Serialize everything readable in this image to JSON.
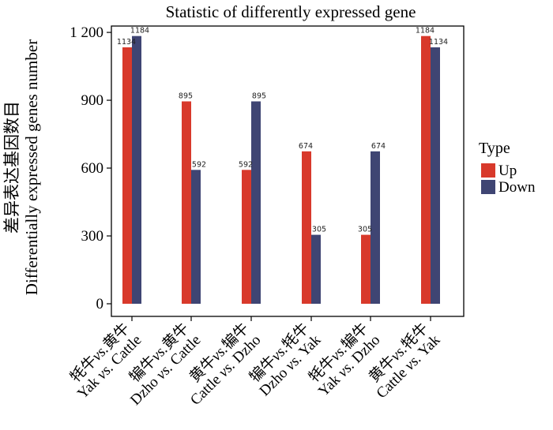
{
  "chart_data": {
    "type": "bar",
    "title": "Statistic of differently expressed gene",
    "ylabel_cn": "差异表达基因数目",
    "ylabel_en": "Differentially expressed genes number",
    "ylim": [
      0,
      1220
    ],
    "yticks": [
      0,
      300,
      600,
      900,
      1200
    ],
    "ytick_labels": [
      "0",
      "300",
      "600",
      "900",
      "1 200"
    ],
    "categories": [
      {
        "cn": "牦牛",
        "vs": "vs.",
        "cn2": "黄牛",
        "en1": "Yak",
        "en2": "Cattle"
      },
      {
        "cn": "犏牛",
        "vs": "vs.",
        "cn2": "黄牛",
        "en1": "Dzho",
        "en2": "Cattle"
      },
      {
        "cn": "黄牛",
        "vs": "vs.",
        "cn2": "犏牛",
        "en1": "Cattle",
        "en2": "Dzho"
      },
      {
        "cn": "犏牛",
        "vs": "vs.",
        "cn2": "牦牛",
        "en1": "Dzho",
        "en2": "Yak"
      },
      {
        "cn": "牦牛",
        "vs": "vs.",
        "cn2": "犏牛",
        "en1": "Yak",
        "en2": "Dzho"
      },
      {
        "cn": "黄牛",
        "vs": "vs.",
        "cn2": "牦牛",
        "en1": "Cattle",
        "en2": "Yak"
      }
    ],
    "series": [
      {
        "name": "Up",
        "color": "#d8392b",
        "values": [
          1134,
          895,
          592,
          674,
          305,
          1184
        ]
      },
      {
        "name": "Down",
        "color": "#3f4573",
        "values": [
          1184,
          592,
          895,
          305,
          674,
          1134
        ]
      }
    ],
    "legend": {
      "title": "Type",
      "placement": "right"
    },
    "grid": false
  }
}
